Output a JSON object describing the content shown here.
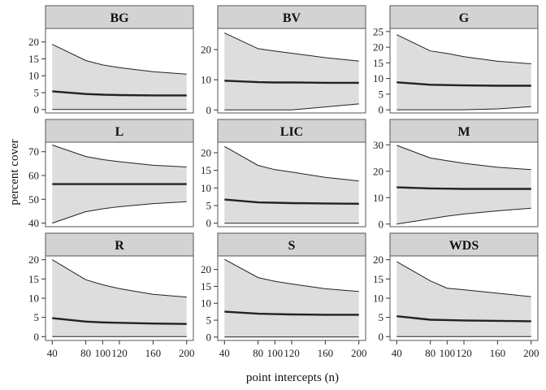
{
  "chart_data": {
    "type": "area",
    "xlabel": "point intercepts (n)",
    "ylabel": "percent cover",
    "x": [
      40,
      80,
      100,
      120,
      160,
      200
    ],
    "x_ticks": [
      40,
      80,
      100,
      120,
      160,
      200
    ],
    "layout": "3x3 facet grid",
    "panels": [
      {
        "label": "BG",
        "ylim": [
          -1,
          24
        ],
        "yticks": [
          0,
          5,
          10,
          15,
          20
        ],
        "upper": [
          19.3,
          14.5,
          13.2,
          12.4,
          11.2,
          10.5
        ],
        "mean": [
          5.4,
          4.6,
          4.4,
          4.3,
          4.2,
          4.2
        ],
        "lower": [
          0,
          0,
          0,
          0,
          0,
          0
        ]
      },
      {
        "label": "BV",
        "ylim": [
          -1,
          27
        ],
        "yticks": [
          0,
          10,
          20
        ],
        "upper": [
          25.5,
          20.3,
          19.5,
          18.8,
          17.3,
          16.2
        ],
        "mean": [
          9.7,
          9.2,
          9.1,
          9.1,
          9.0,
          9.0
        ],
        "lower": [
          0,
          0,
          0,
          0,
          1.0,
          2.0
        ]
      },
      {
        "label": "G",
        "ylim": [
          -1,
          26
        ],
        "yticks": [
          0,
          5,
          10,
          15,
          20,
          25
        ],
        "upper": [
          24.0,
          18.8,
          18.0,
          17.0,
          15.5,
          14.7
        ],
        "mean": [
          8.8,
          8.0,
          7.9,
          7.8,
          7.7,
          7.7
        ],
        "lower": [
          0,
          0,
          0,
          0,
          0.3,
          1.0
        ]
      },
      {
        "label": "L",
        "ylim": [
          38.5,
          74
        ],
        "yticks": [
          40,
          50,
          60,
          70
        ],
        "upper": [
          72.8,
          68.0,
          66.7,
          65.8,
          64.3,
          63.6
        ],
        "mean": [
          56.4,
          56.4,
          56.4,
          56.4,
          56.4,
          56.4
        ],
        "lower": [
          40.0,
          44.8,
          46.0,
          46.9,
          48.2,
          49.0
        ]
      },
      {
        "label": "LIC",
        "ylim": [
          -1,
          23
        ],
        "yticks": [
          0,
          5,
          10,
          15,
          20
        ],
        "upper": [
          21.8,
          16.4,
          15.2,
          14.5,
          13.0,
          12.0
        ],
        "mean": [
          6.7,
          5.9,
          5.8,
          5.7,
          5.6,
          5.5
        ],
        "lower": [
          0,
          0,
          0,
          0,
          0,
          0
        ]
      },
      {
        "label": "M",
        "ylim": [
          -1,
          31
        ],
        "yticks": [
          0,
          10,
          20,
          30
        ],
        "upper": [
          29.8,
          25.0,
          24.0,
          23.0,
          21.5,
          20.6
        ],
        "mean": [
          13.9,
          13.5,
          13.4,
          13.3,
          13.3,
          13.3
        ],
        "lower": [
          0,
          2.0,
          3.0,
          3.8,
          5.0,
          6.0
        ]
      },
      {
        "label": "R",
        "ylim": [
          -1,
          21
        ],
        "yticks": [
          0,
          5,
          10,
          15,
          20
        ],
        "upper": [
          20.0,
          14.8,
          13.5,
          12.5,
          11.0,
          10.3
        ],
        "mean": [
          4.8,
          3.9,
          3.7,
          3.6,
          3.4,
          3.3
        ],
        "lower": [
          0,
          0,
          0,
          0,
          0,
          0
        ]
      },
      {
        "label": "S",
        "ylim": [
          -1,
          24
        ],
        "yticks": [
          0,
          5,
          10,
          15,
          20
        ],
        "upper": [
          23.0,
          17.6,
          16.5,
          15.7,
          14.3,
          13.5
        ],
        "mean": [
          7.5,
          6.9,
          6.8,
          6.7,
          6.6,
          6.6
        ],
        "lower": [
          0,
          0,
          0,
          0,
          0,
          0
        ]
      },
      {
        "label": "WDS",
        "ylim": [
          -1,
          21
        ],
        "yticks": [
          0,
          5,
          10,
          15,
          20
        ],
        "upper": [
          19.5,
          14.5,
          12.6,
          12.2,
          11.3,
          10.4
        ],
        "mean": [
          5.3,
          4.4,
          4.3,
          4.2,
          4.1,
          4.0
        ],
        "lower": [
          0,
          0,
          0,
          0,
          0,
          0
        ]
      }
    ]
  }
}
